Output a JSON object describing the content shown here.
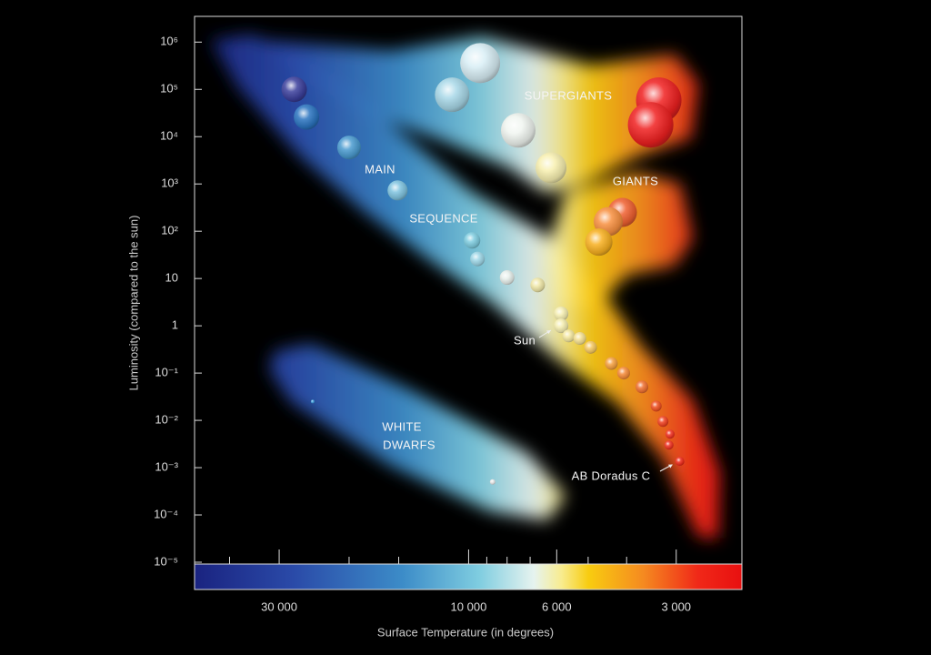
{
  "chart_data": {
    "type": "scatter",
    "xlabel": "Surface Temperature (in degrees)",
    "ylabel": "Luminosity (compared to the sun)",
    "xscale": "log",
    "yscale": "log",
    "xlim": [
      49000,
      2050
    ],
    "ylim": [
      1e-05,
      3500000
    ],
    "xticks": [
      {
        "value": 30000,
        "label": "30 000"
      },
      {
        "value": 10000,
        "label": "10 000"
      },
      {
        "value": 6000,
        "label": "6 000"
      },
      {
        "value": 3000,
        "label": "3 000"
      }
    ],
    "xminorticks": [
      40000,
      20000,
      15000,
      9000,
      8000,
      7000,
      5000,
      4000
    ],
    "yticks": [
      {
        "value": 1000000,
        "label": "10⁶"
      },
      {
        "value": 100000,
        "label": "10⁵"
      },
      {
        "value": 10000,
        "label": "10⁴"
      },
      {
        "value": 1000,
        "label": "10³"
      },
      {
        "value": 100,
        "label": "10²"
      },
      10,
      1,
      {
        "value": 0.1,
        "label": "10⁻¹"
      },
      {
        "value": 0.01,
        "label": "10⁻²"
      },
      {
        "value": 0.001,
        "label": "10⁻³"
      },
      {
        "value": 0.0001,
        "label": "10⁻⁴"
      },
      {
        "value": 1e-05,
        "label": "10⁻⁵"
      }
    ],
    "annotations": [
      "SUPERGIANTS",
      "GIANTS",
      "MAIN",
      "SEQUENCE",
      "WHITE",
      "DWARFS",
      "Sun",
      "AB Doradus C"
    ],
    "series": [
      {
        "x": [
          27500,
          25600,
          20000,
          15100,
          9800,
          9500,
          8000,
          6700,
          5850,
          5850,
          5600,
          5250,
          4930,
          4370,
          4070,
          3660,
          3370,
          3240,
          3110,
          3130,
          2940,
          9350,
          11000,
          7500,
          6200,
          3320,
          3480,
          4100,
          4450,
          4700,
          24700,
          8700
        ],
        "y": [
          100000,
          26000,
          5900,
          730,
          64,
          26,
          10.5,
          7.3,
          1.8,
          1,
          0.61,
          0.54,
          0.35,
          0.16,
          0.1,
          0.051,
          0.02,
          0.0095,
          0.0051,
          0.003,
          0.00136,
          360000,
          77000,
          13600,
          2200,
          59000,
          17800,
          250,
          160,
          59,
          0.025,
          0.0005
        ],
        "size": [
          14,
          14,
          13,
          11,
          9,
          8,
          8,
          8,
          8,
          8,
          7,
          7,
          7,
          7,
          7,
          7,
          6,
          6,
          5,
          5,
          5,
          22,
          19,
          19,
          17,
          25,
          25,
          16,
          16,
          15,
          2,
          3
        ],
        "colors": [
          "#3b3f9c",
          "#2a74c0",
          "#4a9bd0",
          "#80c4e0",
          "#7fcde0",
          "#9fd8e8",
          "#e8f0ec",
          "#f0e8a8",
          "#f5eeb0",
          "#f5eeb0",
          "#f5e8a0",
          "#f5e090",
          "#f5c860",
          "#f5a040",
          "#f58a38",
          "#f07030",
          "#f05020",
          "#f04020",
          "#f03020",
          "#f03020",
          "#f02a1a",
          "#d8eef5",
          "#a8d8e8",
          "#f0f5f0",
          "#f8f0b0",
          "#f02020",
          "#f02020",
          "#f06030",
          "#f89040",
          "#f8b020",
          "#40a0e0",
          "#e8e8e8"
        ]
      }
    ]
  }
}
